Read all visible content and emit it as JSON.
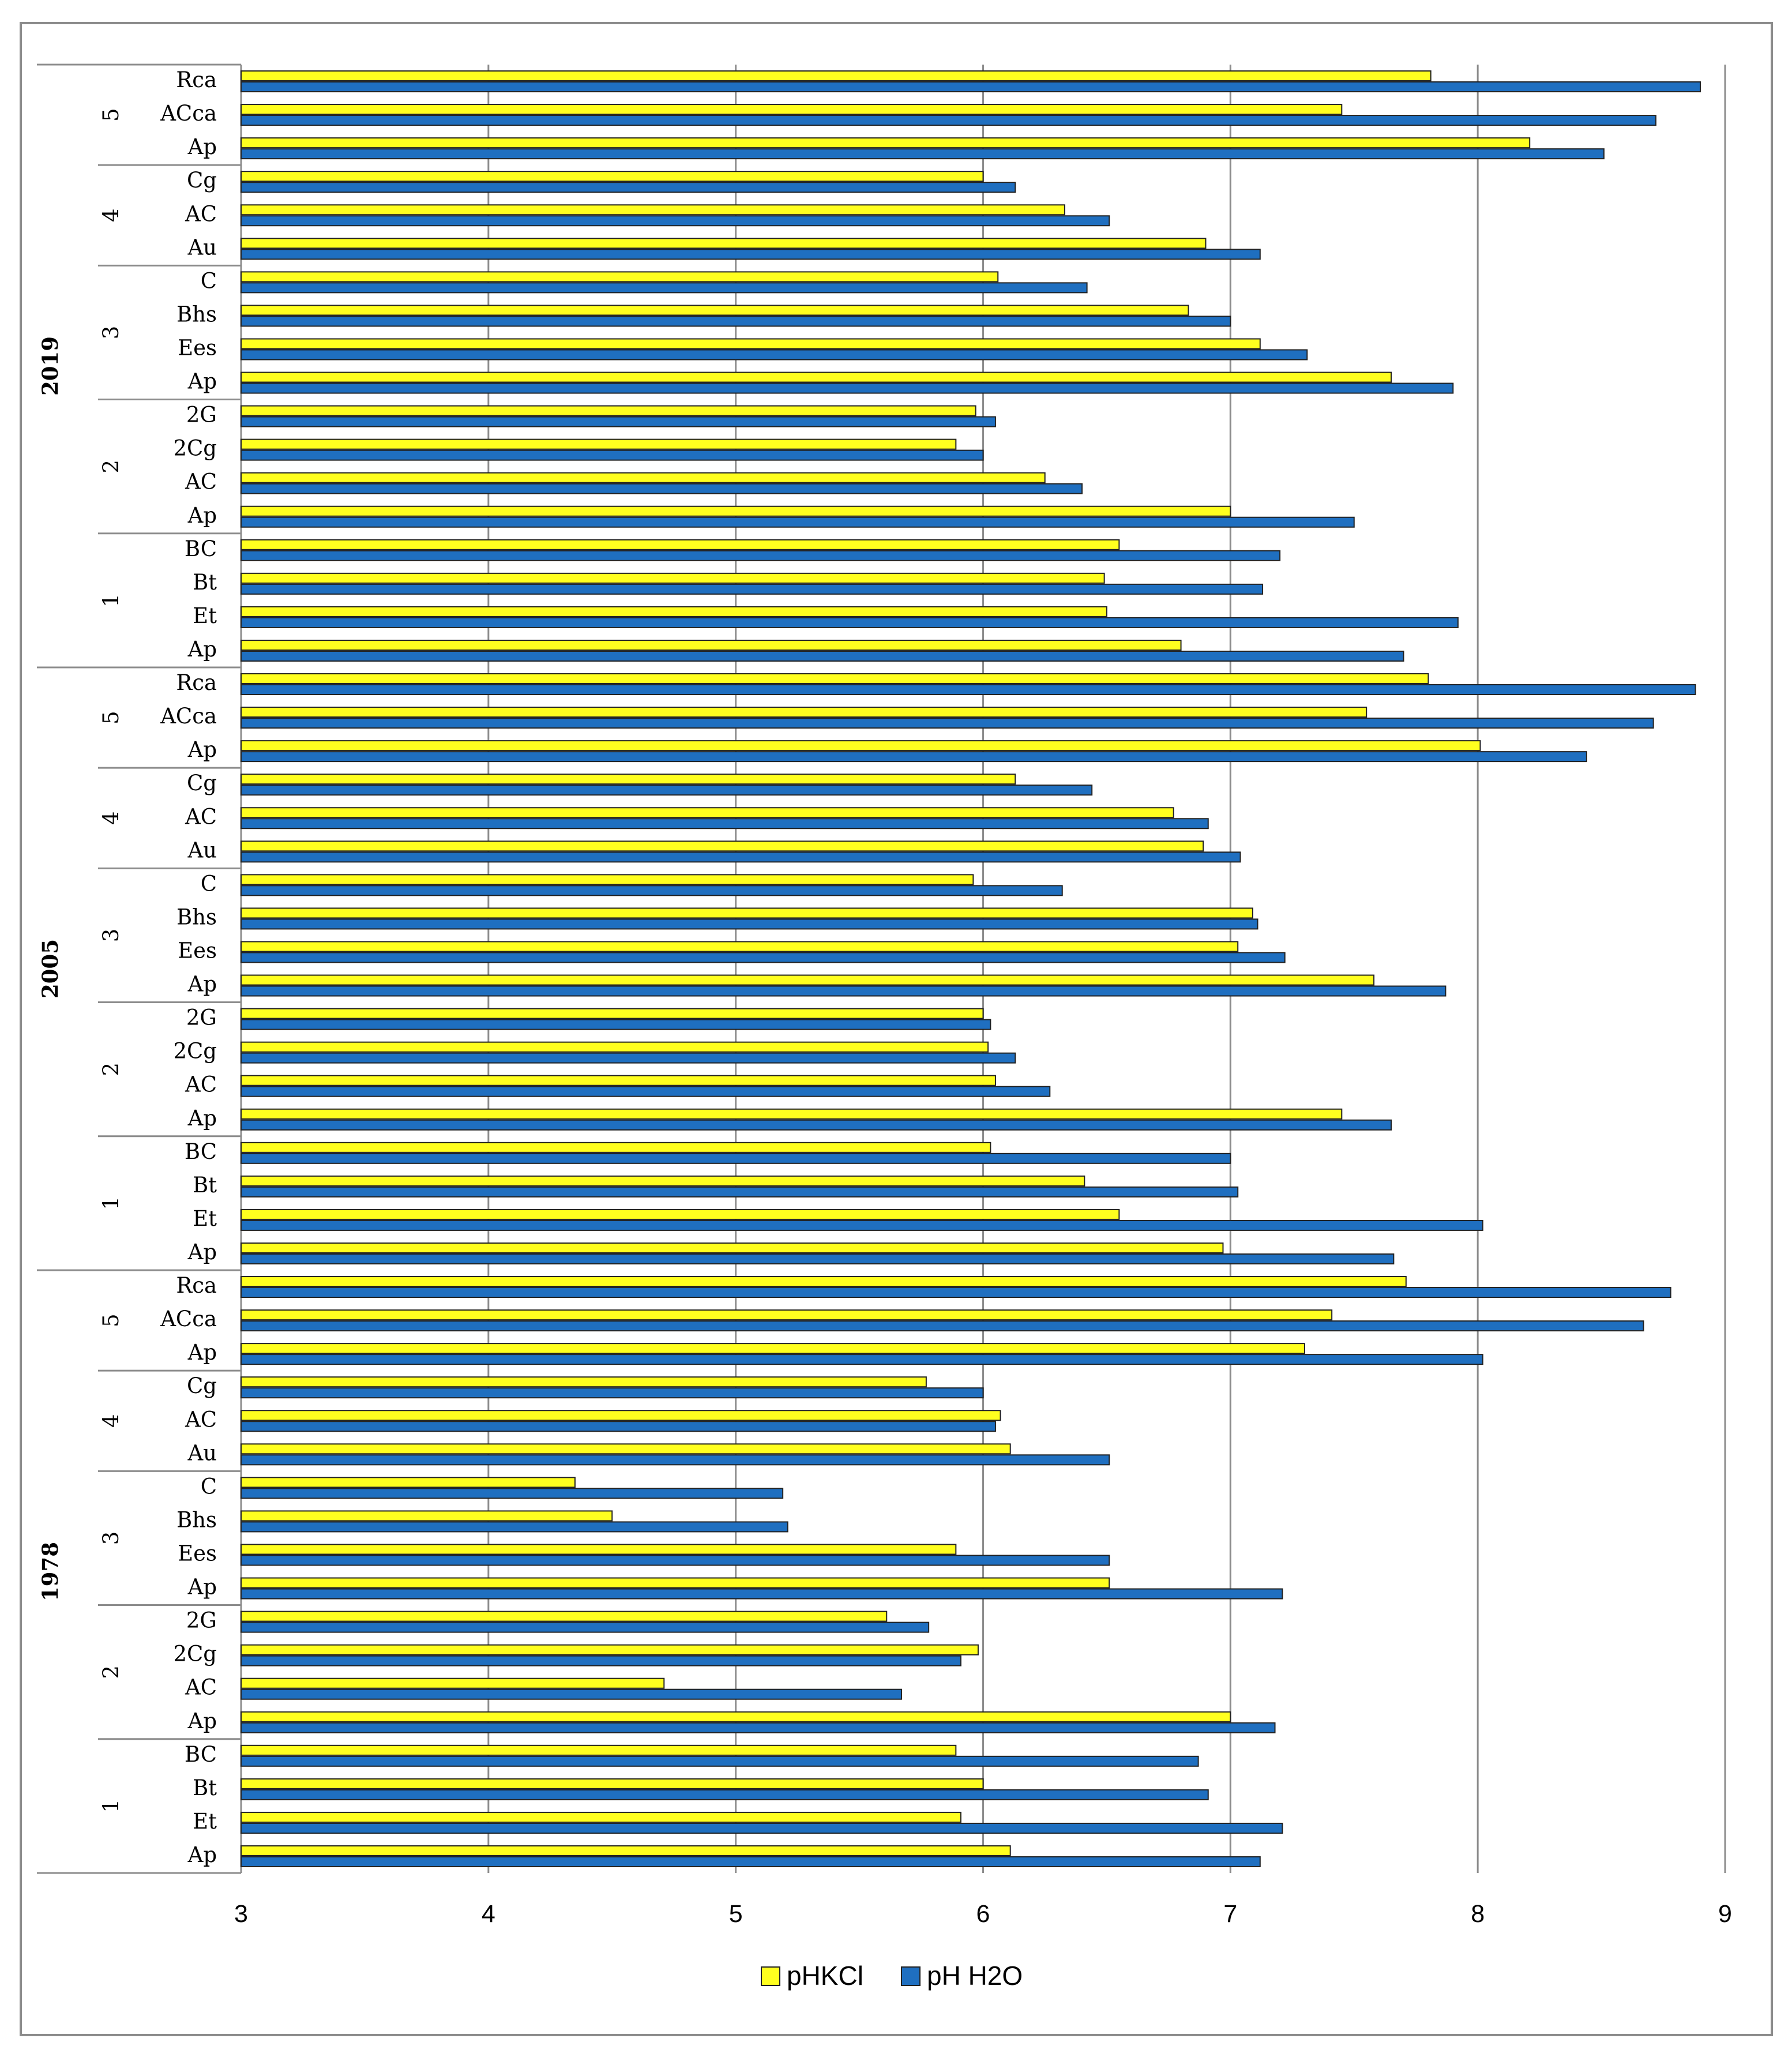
{
  "chart_data": {
    "type": "bar",
    "orientation": "horizontal",
    "title": "",
    "xlabel": "",
    "ylabel": "",
    "xlim": [
      3,
      9
    ],
    "x_ticks": [
      3,
      4,
      5,
      6,
      7,
      8,
      9
    ],
    "grid": true,
    "legend_position": "bottom",
    "colors": {
      "pHKCl": "#ffff1f",
      "pH H2O": "#1f6fc0"
    },
    "series_names": [
      "pHKCl",
      "pH H2O"
    ],
    "years": [
      {
        "year": "2019",
        "profiles": [
          {
            "profile": "5",
            "rows": [
              {
                "horizon": "Rca",
                "pHKCl": 7.81,
                "pH_H2O": 8.9
              },
              {
                "horizon": "ACca",
                "pHKCl": 7.45,
                "pH_H2O": 8.72
              },
              {
                "horizon": "Ap",
                "pHKCl": 8.21,
                "pH_H2O": 8.51
              }
            ]
          },
          {
            "profile": "4",
            "rows": [
              {
                "horizon": "Cg",
                "pHKCl": 6.0,
                "pH_H2O": 6.13
              },
              {
                "horizon": "AC",
                "pHKCl": 6.33,
                "pH_H2O": 6.51
              },
              {
                "horizon": "Au",
                "pHKCl": 6.9,
                "pH_H2O": 7.12
              }
            ]
          },
          {
            "profile": "3",
            "rows": [
              {
                "horizon": "C",
                "pHKCl": 6.06,
                "pH_H2O": 6.42
              },
              {
                "horizon": "Bhs",
                "pHKCl": 6.83,
                "pH_H2O": 7.0
              },
              {
                "horizon": "Ees",
                "pHKCl": 7.12,
                "pH_H2O": 7.31
              },
              {
                "horizon": "Ap",
                "pHKCl": 7.65,
                "pH_H2O": 7.9
              }
            ]
          },
          {
            "profile": "2",
            "rows": [
              {
                "horizon": "2G",
                "pHKCl": 5.97,
                "pH_H2O": 6.05
              },
              {
                "horizon": "2Cg",
                "pHKCl": 5.89,
                "pH_H2O": 6.0
              },
              {
                "horizon": "AC",
                "pHKCl": 6.25,
                "pH_H2O": 6.4
              },
              {
                "horizon": "Ap",
                "pHKCl": 7.0,
                "pH_H2O": 7.5
              }
            ]
          },
          {
            "profile": "1",
            "rows": [
              {
                "horizon": "BC",
                "pHKCl": 6.55,
                "pH_H2O": 7.2
              },
              {
                "horizon": "Bt",
                "pHKCl": 6.49,
                "pH_H2O": 7.13
              },
              {
                "horizon": "Et",
                "pHKCl": 6.5,
                "pH_H2O": 7.92
              },
              {
                "horizon": "Ap",
                "pHKCl": 6.8,
                "pH_H2O": 7.7
              }
            ]
          }
        ]
      },
      {
        "year": "2005",
        "profiles": [
          {
            "profile": "5",
            "rows": [
              {
                "horizon": "Rca",
                "pHKCl": 7.8,
                "pH_H2O": 8.88
              },
              {
                "horizon": "ACca",
                "pHKCl": 7.55,
                "pH_H2O": 8.71
              },
              {
                "horizon": "Ap",
                "pHKCl": 8.01,
                "pH_H2O": 8.44
              }
            ]
          },
          {
            "profile": "4",
            "rows": [
              {
                "horizon": "Cg",
                "pHKCl": 6.13,
                "pH_H2O": 6.44
              },
              {
                "horizon": "AC",
                "pHKCl": 6.77,
                "pH_H2O": 6.91
              },
              {
                "horizon": "Au",
                "pHKCl": 6.89,
                "pH_H2O": 7.04
              }
            ]
          },
          {
            "profile": "3",
            "rows": [
              {
                "horizon": "C",
                "pHKCl": 5.96,
                "pH_H2O": 6.32
              },
              {
                "horizon": "Bhs",
                "pHKCl": 7.09,
                "pH_H2O": 7.11
              },
              {
                "horizon": "Ees",
                "pHKCl": 7.03,
                "pH_H2O": 7.22
              },
              {
                "horizon": "Ap",
                "pHKCl": 7.58,
                "pH_H2O": 7.87
              }
            ]
          },
          {
            "profile": "2",
            "rows": [
              {
                "horizon": "2G",
                "pHKCl": 6.0,
                "pH_H2O": 6.03
              },
              {
                "horizon": "2Cg",
                "pHKCl": 6.02,
                "pH_H2O": 6.13
              },
              {
                "horizon": "AC",
                "pHKCl": 6.05,
                "pH_H2O": 6.27
              },
              {
                "horizon": "Ap",
                "pHKCl": 7.45,
                "pH_H2O": 7.65
              }
            ]
          },
          {
            "profile": "1",
            "rows": [
              {
                "horizon": "BC",
                "pHKCl": 6.03,
                "pH_H2O": 7.0
              },
              {
                "horizon": "Bt",
                "pHKCl": 6.41,
                "pH_H2O": 7.03
              },
              {
                "horizon": "Et",
                "pHKCl": 6.55,
                "pH_H2O": 8.02
              },
              {
                "horizon": "Ap",
                "pHKCl": 6.97,
                "pH_H2O": 7.66
              }
            ]
          }
        ]
      },
      {
        "year": "1978",
        "profiles": [
          {
            "profile": "5",
            "rows": [
              {
                "horizon": "Rca",
                "pHKCl": 7.71,
                "pH_H2O": 8.78
              },
              {
                "horizon": "ACca",
                "pHKCl": 7.41,
                "pH_H2O": 8.67
              },
              {
                "horizon": "Ap",
                "pHKCl": 7.3,
                "pH_H2O": 8.02
              }
            ]
          },
          {
            "profile": "4",
            "rows": [
              {
                "horizon": "Cg",
                "pHKCl": 5.77,
                "pH_H2O": 6.0
              },
              {
                "horizon": "AC",
                "pHKCl": 6.07,
                "pH_H2O": 6.05
              },
              {
                "horizon": "Au",
                "pHKCl": 6.11,
                "pH_H2O": 6.51
              }
            ]
          },
          {
            "profile": "3",
            "rows": [
              {
                "horizon": "C",
                "pHKCl": 4.35,
                "pH_H2O": 5.19
              },
              {
                "horizon": "Bhs",
                "pHKCl": 4.5,
                "pH_H2O": 5.21
              },
              {
                "horizon": "Ees",
                "pHKCl": 5.89,
                "pH_H2O": 6.51
              },
              {
                "horizon": "Ap",
                "pHKCl": 6.51,
                "pH_H2O": 7.21
              }
            ]
          },
          {
            "profile": "2",
            "rows": [
              {
                "horizon": "2G",
                "pHKCl": 5.61,
                "pH_H2O": 5.78
              },
              {
                "horizon": "2Cg",
                "pHKCl": 5.98,
                "pH_H2O": 5.91
              },
              {
                "horizon": "AC",
                "pHKCl": 4.71,
                "pH_H2O": 5.67
              },
              {
                "horizon": "Ap",
                "pHKCl": 7.0,
                "pH_H2O": 7.18
              }
            ]
          },
          {
            "profile": "1",
            "rows": [
              {
                "horizon": "BC",
                "pHKCl": 5.89,
                "pH_H2O": 6.87
              },
              {
                "horizon": "Bt",
                "pHKCl": 6.0,
                "pH_H2O": 6.91
              },
              {
                "horizon": "Et",
                "pHKCl": 5.91,
                "pH_H2O": 7.21
              },
              {
                "horizon": "Ap",
                "pHKCl": 6.11,
                "pH_H2O": 7.12
              }
            ]
          }
        ]
      }
    ]
  }
}
